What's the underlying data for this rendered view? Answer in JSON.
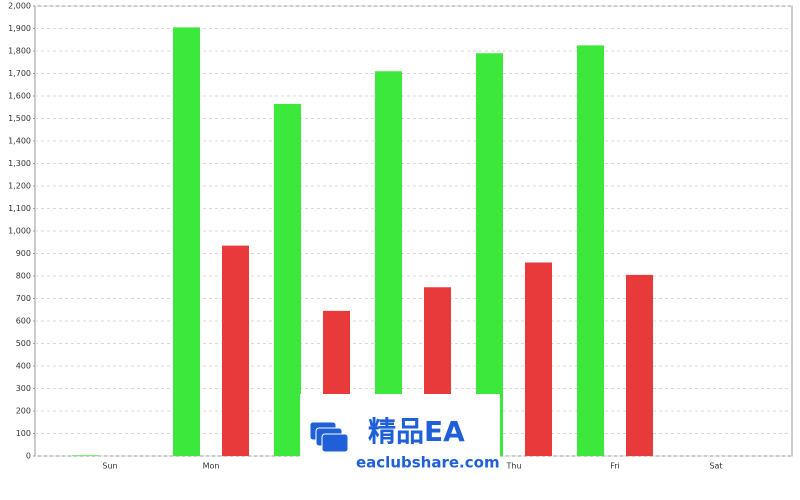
{
  "chart_data": {
    "type": "bar",
    "categories": [
      "Sun",
      "Mon",
      null,
      null,
      "Thu",
      "Fri",
      "Sat"
    ],
    "series": [
      {
        "color": "#3de83d",
        "values": [
          3,
          1905,
          1565,
          1710,
          1790,
          1825,
          0
        ]
      },
      {
        "color": "#e8393b",
        "values": [
          0,
          935,
          645,
          750,
          860,
          805,
          0
        ]
      }
    ],
    "ylim": [
      0,
      2000
    ],
    "yticks": [
      0,
      100,
      200,
      300,
      400,
      500,
      600,
      700,
      800,
      900,
      {
        "value": 1000,
        "label": "1,000"
      },
      {
        "value": 1100,
        "label": "1,100"
      },
      {
        "value": 1200,
        "label": "1,200"
      },
      {
        "value": 1300,
        "label": "1,300"
      },
      {
        "value": 1400,
        "label": "1,400"
      },
      {
        "value": 1500,
        "label": "1,500"
      },
      {
        "value": 1600,
        "label": "1,600"
      },
      {
        "value": 1700,
        "label": "1,700"
      },
      {
        "value": 1800,
        "label": "1,800"
      },
      {
        "value": 1900,
        "label": "1,900"
      },
      {
        "value": 2000,
        "label": "2,000"
      }
    ],
    "grid": true
  },
  "watermark": {
    "title": "精品EA",
    "subtitle": "eaclubshare.com"
  }
}
